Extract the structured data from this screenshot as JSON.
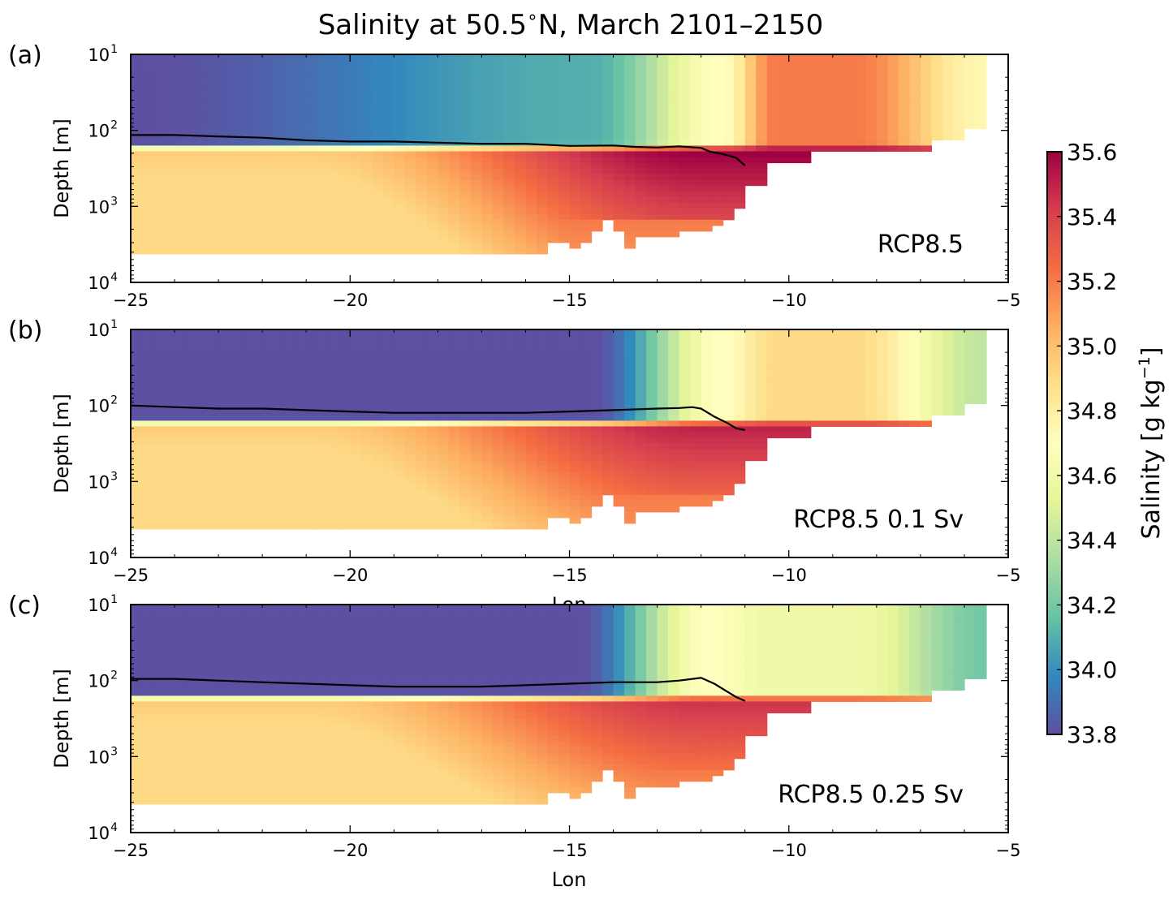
{
  "figure": {
    "title": "Salinity at 50.5$^\\circ$N, March 2101–2150",
    "title_text": "Salinity at 50.5",
    "title_deg": "∘",
    "title_rest": "N, March 2101–2150"
  },
  "chart_data": [
    {
      "type": "heatmap",
      "panel_label": "(a)",
      "scenario_label": "RCP8.5",
      "ylabel": "Depth [m]",
      "xlabel": "",
      "xlim": [
        -25,
        -5
      ],
      "ylim": [
        10,
        10000
      ],
      "yscale": "log",
      "y_inverted": true,
      "xticks": [
        -25,
        -20,
        -15,
        -10,
        -5
      ],
      "xtick_labels": [
        "−25",
        "−20",
        "−15",
        "−10",
        "−5"
      ],
      "ytick_labels": [
        "10",
        "10",
        "10",
        "10"
      ],
      "ytick_exponents": [
        "1",
        "2",
        "3",
        "4"
      ],
      "upper_layer": {
        "west": 33.8,
        "mid": 34.1,
        "front_lon": -11.5,
        "east": 35.2,
        "far_east": 34.75
      },
      "deep_layer_max": 35.6,
      "mixed_layer_depth": {
        "lon": [
          -25,
          -24,
          -23,
          -22,
          -21,
          -20,
          -19,
          -18,
          -17,
          -16,
          -15,
          -14,
          -13.5,
          -13,
          -12.5,
          -12,
          -11.8,
          -11.5,
          -11.2,
          -11
        ],
        "depth": [
          115,
          115,
          120,
          125,
          135,
          140,
          140,
          145,
          150,
          150,
          160,
          158,
          165,
          168,
          162,
          170,
          190,
          205,
          230,
          290
        ]
      }
    },
    {
      "type": "heatmap",
      "panel_label": "(b)",
      "scenario_label": "RCP8.5 0.1 Sv",
      "ylabel": "Depth [m]",
      "xlabel": "Lon",
      "xlim": [
        -25,
        -5
      ],
      "ylim": [
        10,
        10000
      ],
      "yscale": "log",
      "y_inverted": true,
      "xticks": [
        -25,
        -20,
        -15,
        -10,
        -5
      ],
      "xtick_labels": [
        "−25",
        "−20",
        "−15",
        "−10",
        "−5"
      ],
      "ytick_labels": [
        "10",
        "10",
        "10",
        "10"
      ],
      "ytick_exponents": [
        "1",
        "2",
        "3",
        "4"
      ],
      "upper_layer": {
        "west": 33.8,
        "mid": 33.8,
        "front_lon": -11.5,
        "east": 34.9,
        "far_east": 34.4
      },
      "deep_layer_max": 35.5,
      "mixed_layer_depth": {
        "lon": [
          -25,
          -24,
          -23,
          -22,
          -21,
          -20,
          -19,
          -18,
          -17,
          -16,
          -15,
          -14,
          -13,
          -12.5,
          -12.2,
          -12,
          -11.7,
          -11.4,
          -11.2,
          -11
        ],
        "depth": [
          100,
          105,
          110,
          110,
          115,
          120,
          125,
          125,
          125,
          125,
          120,
          115,
          110,
          108,
          105,
          110,
          140,
          170,
          200,
          210
        ]
      }
    },
    {
      "type": "heatmap",
      "panel_label": "(c)",
      "scenario_label": "RCP8.5 0.25 Sv",
      "ylabel": "Depth [m]",
      "xlabel": "Lon",
      "xlim": [
        -25,
        -5
      ],
      "ylim": [
        10,
        10000
      ],
      "yscale": "log",
      "y_inverted": true,
      "xticks": [
        -25,
        -20,
        -15,
        -10,
        -5
      ],
      "xtick_labels": [
        "−25",
        "−20",
        "−15",
        "−10",
        "−5"
      ],
      "ytick_labels": [
        "10",
        "10",
        "10",
        "10"
      ],
      "ytick_exponents": [
        "1",
        "2",
        "3",
        "4"
      ],
      "upper_layer": {
        "west": 33.8,
        "mid": 33.8,
        "front_lon": -11.8,
        "east": 34.6,
        "far_east": 34.2
      },
      "deep_layer_max": 35.45,
      "mixed_layer_depth": {
        "lon": [
          -25,
          -24,
          -23,
          -22,
          -21,
          -20,
          -19,
          -18,
          -17,
          -16,
          -15,
          -14,
          -13,
          -12.5,
          -12.2,
          -12,
          -11.7,
          -11.4,
          -11.2,
          -11
        ],
        "depth": [
          95,
          95,
          100,
          105,
          110,
          115,
          120,
          120,
          120,
          115,
          110,
          105,
          105,
          100,
          95,
          92,
          110,
          140,
          165,
          185
        ]
      }
    }
  ],
  "colorbar": {
    "label_text": "Salinity [g kg",
    "label_sup": "−1",
    "label_close": "]",
    "min": 33.8,
    "max": 35.6,
    "ticks": [
      33.8,
      34.0,
      34.2,
      34.4,
      34.6,
      34.8,
      35.0,
      35.2,
      35.4,
      35.6
    ],
    "tick_labels": [
      "33.8",
      "34.0",
      "34.2",
      "34.4",
      "34.6",
      "34.8",
      "35.0",
      "35.2",
      "35.4",
      "35.6"
    ],
    "colormap": "Spectral_r",
    "colors": [
      "#5e4fa2",
      "#3288bd",
      "#66c2a5",
      "#abdda4",
      "#e6f598",
      "#ffffbf",
      "#fee08b",
      "#fdae61",
      "#f46d43",
      "#d53e4f",
      "#9e0142"
    ]
  },
  "line_color": "#000000"
}
